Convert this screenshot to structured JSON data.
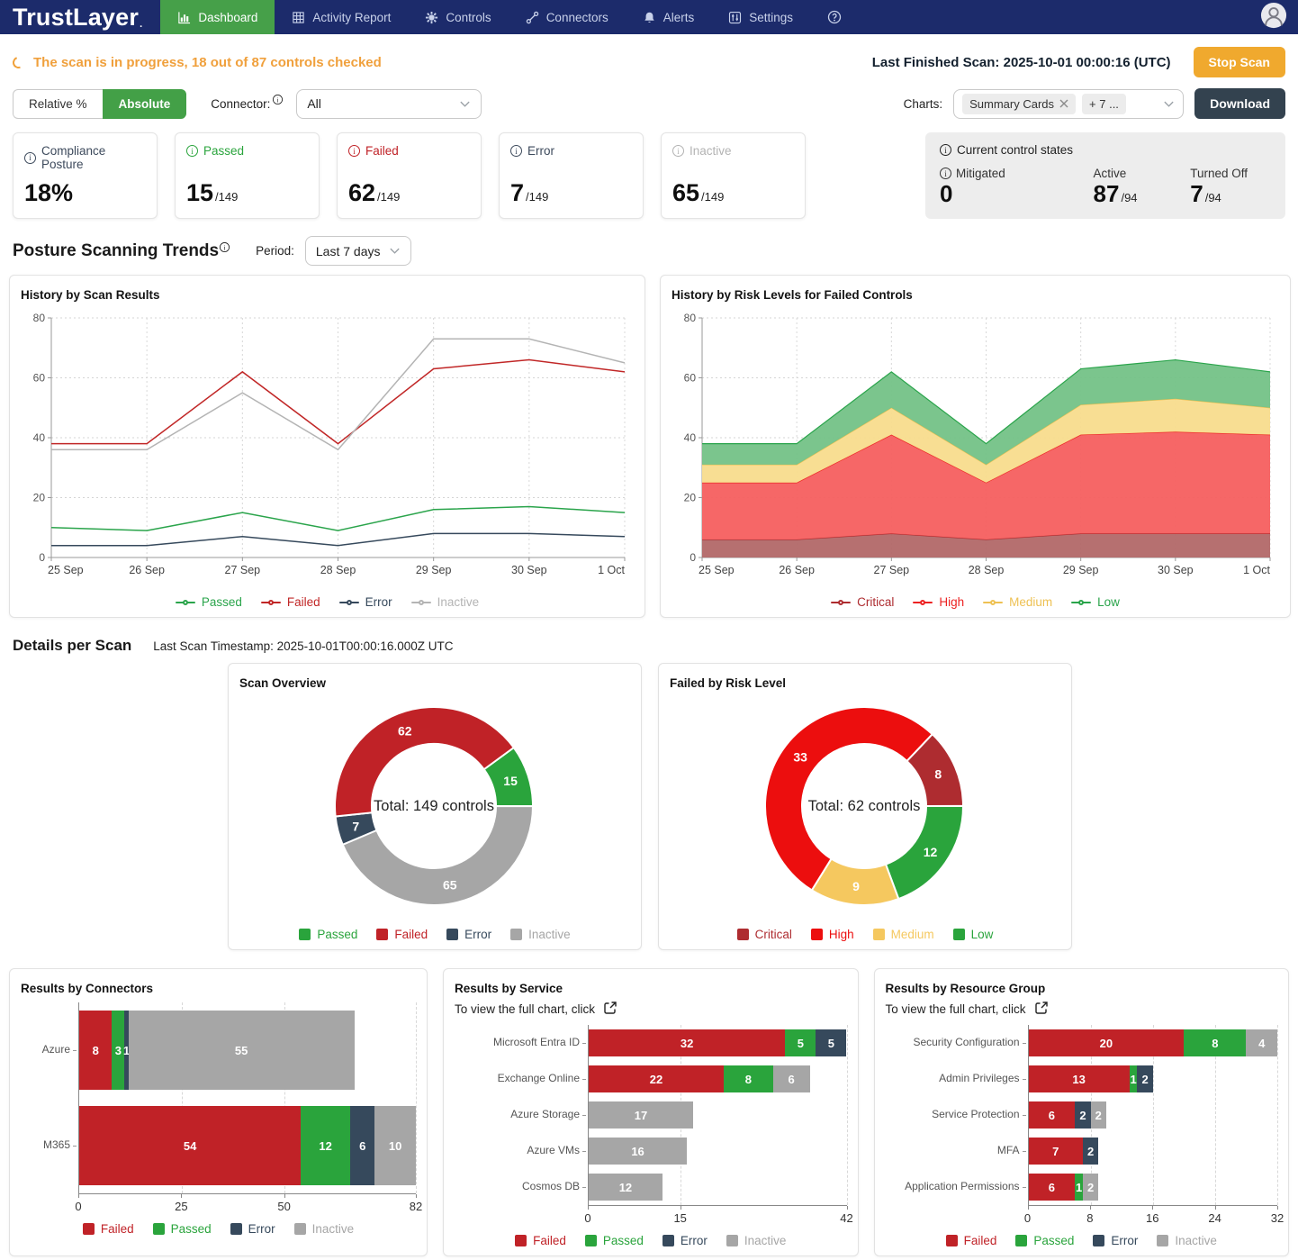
{
  "nav": {
    "logo": "TrustLayer",
    "logo_mark": ".",
    "items": [
      {
        "label": "Dashboard",
        "icon": "bar-chart-icon",
        "active": true
      },
      {
        "label": "Activity Report",
        "icon": "table-icon",
        "active": false
      },
      {
        "label": "Controls",
        "icon": "gear-icon",
        "active": false
      },
      {
        "label": "Connectors",
        "icon": "link-icon",
        "active": false
      },
      {
        "label": "Alerts",
        "icon": "bell-icon",
        "active": false
      },
      {
        "label": "Settings",
        "icon": "sliders-icon",
        "active": false
      },
      {
        "label": "",
        "icon": "help-icon",
        "active": false
      }
    ]
  },
  "scan_banner": {
    "message": "The scan is in progress, 18 out of 87 controls checked",
    "last_finished_label": "Last Finished Scan: 2025-10-01 00:00:16 (UTC)",
    "stop_button": "Stop Scan"
  },
  "filters": {
    "relative_label": "Relative %",
    "absolute_label": "Absolute",
    "connector_label": "Connector:",
    "connector_value": "All",
    "charts_label": "Charts:",
    "charts_tag1": "Summary Cards",
    "charts_tag2": "+ 7 ...",
    "download_button": "Download"
  },
  "summary_cards": [
    {
      "label": "Compliance Posture",
      "value": "18%",
      "suffix": "",
      "color": "#3d4a5c"
    },
    {
      "label": "Passed",
      "value": "15",
      "suffix": "/149",
      "color": "#2aa43c"
    },
    {
      "label": "Failed",
      "value": "62",
      "suffix": "/149",
      "color": "#c02227"
    },
    {
      "label": "Error",
      "value": "7",
      "suffix": "/149",
      "color": "#3d4a5c"
    },
    {
      "label": "Inactive",
      "value": "65",
      "suffix": "/149",
      "color": "#b3b3b3"
    }
  ],
  "control_states": {
    "title": "Current control states",
    "items": [
      {
        "label": "Mitigated",
        "value": "0",
        "suffix": "",
        "info": true
      },
      {
        "label": "Active",
        "value": "87",
        "suffix": "/94",
        "info": false
      },
      {
        "label": "Turned Off",
        "value": "7",
        "suffix": "/94",
        "info": false
      }
    ]
  },
  "trends": {
    "title": "Posture Scanning Trends",
    "period_label": "Period:",
    "period_value": "Last 7 days"
  },
  "details": {
    "title": "Details per Scan",
    "timestamp": "Last Scan Timestamp: 2025-10-01T00:00:16.000Z UTC"
  },
  "chart_data": [
    {
      "id": "history_scan_results",
      "type": "line",
      "title": "History by Scan Results",
      "x": [
        "25 Sep",
        "26 Sep",
        "27 Sep",
        "28 Sep",
        "29 Sep",
        "30 Sep",
        "1 Oct"
      ],
      "ylim": [
        0,
        80
      ],
      "yticks": [
        0,
        20,
        40,
        60,
        80
      ],
      "grid": true,
      "legend_position": "bottom",
      "series": [
        {
          "name": "Passed",
          "color": "#2aa44b",
          "values": [
            10,
            9,
            15,
            9,
            16,
            17,
            15
          ]
        },
        {
          "name": "Failed",
          "color": "#c12727",
          "values": [
            38,
            38,
            62,
            38,
            63,
            66,
            62
          ]
        },
        {
          "name": "Error",
          "color": "#36495c",
          "values": [
            4,
            4,
            7,
            4,
            8,
            8,
            7
          ]
        },
        {
          "name": "Inactive",
          "color": "#b4b4b4",
          "values": [
            36,
            36,
            55,
            36,
            73,
            73,
            65
          ]
        }
      ]
    },
    {
      "id": "history_risk_levels",
      "type": "area",
      "title": "History by Risk Levels for Failed Controls",
      "x": [
        "25 Sep",
        "26 Sep",
        "27 Sep",
        "28 Sep",
        "29 Sep",
        "30 Sep",
        "1 Oct"
      ],
      "ylim": [
        0,
        80
      ],
      "yticks": [
        0,
        20,
        40,
        60,
        80
      ],
      "grid": true,
      "legend_position": "bottom",
      "stacked": true,
      "series": [
        {
          "name": "Critical",
          "color": "#ae2c30",
          "fill": "#b26868",
          "values": [
            6,
            6,
            8,
            6,
            8,
            8,
            8
          ]
        },
        {
          "name": "High",
          "color": "#ec2222",
          "fill": "#f55f5f",
          "values": [
            19,
            19,
            33,
            19,
            33,
            34,
            33
          ]
        },
        {
          "name": "Medium",
          "color": "#eec153",
          "fill": "#f8dc8d",
          "values": [
            6,
            6,
            9,
            6,
            10,
            11,
            9
          ]
        },
        {
          "name": "Low",
          "color": "#2aa44b",
          "fill": "#74c287",
          "values": [
            7,
            7,
            12,
            7,
            12,
            13,
            12
          ]
        }
      ]
    },
    {
      "id": "scan_overview",
      "type": "pie",
      "title": "Scan Overview",
      "center_text": "Total: 149 controls",
      "total": 149,
      "start_angle": 53.8,
      "draw_order": [
        0,
        3,
        2,
        1
      ],
      "slices": [
        {
          "name": "Passed",
          "value": 15,
          "color": "#2aa43c"
        },
        {
          "name": "Failed",
          "value": 62,
          "color": "#c02227"
        },
        {
          "name": "Error",
          "value": 7,
          "color": "#36495c"
        },
        {
          "name": "Inactive",
          "value": 65,
          "color": "#a6a6a6"
        }
      ]
    },
    {
      "id": "failed_by_risk",
      "type": "pie",
      "title": "Failed by Risk Level",
      "center_text": "Total: 62 controls",
      "total": 62,
      "start_angle": 43.5,
      "draw_order": [
        0,
        3,
        2,
        1
      ],
      "slices": [
        {
          "name": "Critical",
          "value": 8,
          "color": "#ae2c30"
        },
        {
          "name": "High",
          "value": 33,
          "color": "#ec0e0e"
        },
        {
          "name": "Medium",
          "value": 9,
          "color": "#f5c85f"
        },
        {
          "name": "Low",
          "value": 12,
          "color": "#2aa43c"
        }
      ]
    },
    {
      "id": "results_by_connectors",
      "type": "bar",
      "orientation": "horizontal",
      "title": "Results by Connectors",
      "categories": [
        "Azure",
        "M365"
      ],
      "xticks": [
        0,
        25,
        50,
        82
      ],
      "xmax": 82,
      "series": [
        {
          "name": "Failed",
          "color": "#c02227",
          "values": [
            8,
            54
          ]
        },
        {
          "name": "Passed",
          "color": "#2aa43c",
          "values": [
            3,
            12
          ]
        },
        {
          "name": "Error",
          "color": "#36495c",
          "values": [
            1,
            6
          ]
        },
        {
          "name": "Inactive",
          "color": "#a6a6a6",
          "values": [
            55,
            10
          ]
        }
      ]
    },
    {
      "id": "results_by_service",
      "type": "bar",
      "orientation": "horizontal",
      "title": "Results by Service",
      "subtitle": "To view the full chart, click",
      "categories": [
        "Microsoft Entra ID",
        "Exchange Online",
        "Azure Storage",
        "Azure VMs",
        "Cosmos DB"
      ],
      "xticks": [
        0,
        15,
        42
      ],
      "xmax": 42,
      "series": [
        {
          "name": "Failed",
          "color": "#c02227",
          "values": [
            32,
            22,
            0,
            0,
            0
          ]
        },
        {
          "name": "Passed",
          "color": "#2aa43c",
          "values": [
            5,
            8,
            0,
            0,
            0
          ]
        },
        {
          "name": "Error",
          "color": "#36495c",
          "values": [
            5,
            0,
            0,
            0,
            0
          ]
        },
        {
          "name": "Inactive",
          "color": "#a6a6a6",
          "values": [
            0,
            6,
            17,
            16,
            12
          ]
        }
      ]
    },
    {
      "id": "results_by_resource_group",
      "type": "bar",
      "orientation": "horizontal",
      "title": "Results by Resource Group",
      "subtitle": "To view the full chart, click",
      "categories": [
        "Security Configuration",
        "Admin Privileges",
        "Service Protection",
        "MFA",
        "Application Permissions"
      ],
      "xticks": [
        0,
        8,
        16,
        24,
        32
      ],
      "xmax": 32,
      "series": [
        {
          "name": "Failed",
          "color": "#c02227",
          "values": [
            20,
            13,
            6,
            7,
            6
          ]
        },
        {
          "name": "Passed",
          "color": "#2aa43c",
          "values": [
            8,
            1,
            0,
            0,
            1
          ]
        },
        {
          "name": "Error",
          "color": "#36495c",
          "values": [
            0,
            2,
            2,
            2,
            0
          ]
        },
        {
          "name": "Inactive",
          "color": "#a6a6a6",
          "values": [
            4,
            0,
            2,
            0,
            2
          ]
        }
      ]
    }
  ]
}
